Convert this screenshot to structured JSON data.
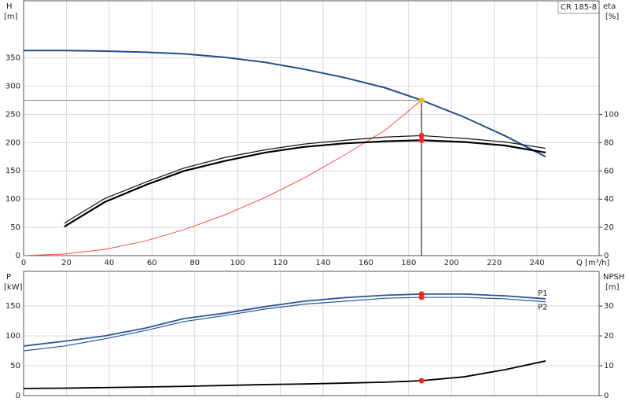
{
  "pump_label": "CR 185-8",
  "chart_data": [
    {
      "type": "line",
      "ylabel": "H",
      "yunit": "[m]",
      "y2label": "eta",
      "y2unit": "[%]",
      "xlabel": "Q [m³/h]",
      "x": [
        0,
        19,
        38,
        57,
        75,
        94,
        113,
        131,
        150,
        169,
        186,
        206,
        225,
        244
      ],
      "xlim": [
        0,
        269
      ],
      "xticks": [
        0,
        20,
        40,
        60,
        80,
        100,
        120,
        140,
        160,
        180,
        200,
        220,
        240
      ],
      "ylim": [
        0,
        451
      ],
      "yticks": [
        0,
        50,
        100,
        150,
        200,
        250,
        300,
        350
      ],
      "y2lim": [
        0,
        180.5
      ],
      "y2ticks": [
        0,
        20,
        40,
        60,
        80,
        100
      ],
      "grid": true,
      "series": [
        {
          "color": "#1f4e8c",
          "width": 2,
          "values": [
            363,
            363,
            362,
            360,
            357,
            351,
            342,
            330,
            315,
            297,
            275,
            245,
            212,
            175
          ]
        },
        {
          "color": "#ff4a3a",
          "width": 1,
          "values": [
            0,
            3,
            11,
            26,
            46,
            72,
            103,
            137,
            178,
            222,
            275,
            null,
            null,
            null
          ]
        },
        {
          "color": "#111111",
          "width": 1.2,
          "axis": "y2",
          "values": [
            null,
            23,
            40.5,
            52,
            62,
            69.5,
            75,
            79,
            81.7,
            84,
            85,
            83,
            80.5,
            76
          ]
        },
        {
          "color": "#000000",
          "width": 2.2,
          "axis": "y2",
          "values": [
            null,
            20.5,
            38,
            50,
            60,
            67,
            73,
            77,
            79.5,
            81,
            81.7,
            80.5,
            78,
            73
          ]
        }
      ],
      "markers": [
        {
          "x": 186,
          "y": 275,
          "color": "#f5b800"
        },
        {
          "x": 186,
          "y": 85,
          "axis": "y2",
          "color": "#ff2020"
        },
        {
          "x": 186,
          "y": 81.7,
          "axis": "y2",
          "color": "#ff2020"
        }
      ]
    },
    {
      "type": "line",
      "ylabel": "P",
      "yunit": "[kW]",
      "y2label": "NPSH",
      "y2unit": "[m]",
      "x": [
        0,
        19,
        38,
        57,
        75,
        94,
        113,
        131,
        150,
        169,
        186,
        206,
        225,
        244
      ],
      "xlim": [
        0,
        269
      ],
      "xticks": [
        0,
        20,
        40,
        60,
        80,
        100,
        120,
        140,
        160,
        180,
        200,
        220,
        240
      ],
      "ylim": [
        0,
        208
      ],
      "yticks": [
        0,
        50,
        100,
        150
      ],
      "y2lim": [
        0,
        41.6
      ],
      "y2ticks": [
        0,
        10,
        20,
        30
      ],
      "grid": true,
      "series": [
        {
          "name": "P1",
          "color": "#2b5797",
          "width": 1.8,
          "values": [
            83,
            91,
            100,
            113,
            129,
            138,
            149,
            158,
            164,
            168,
            170,
            170,
            167,
            162
          ]
        },
        {
          "name": "P2",
          "color": "#2b5797",
          "width": 1.2,
          "values": [
            75,
            83,
            95,
            109,
            124,
            134,
            145,
            153,
            158,
            163,
            164.5,
            164.5,
            162,
            157
          ]
        },
        {
          "color": "#000000",
          "width": 1.8,
          "axis": "y2",
          "values": [
            2.4,
            2.5,
            2.7,
            2.9,
            3.1,
            3.4,
            3.7,
            3.9,
            4.2,
            4.5,
            5,
            6.3,
            8.7,
            11.6
          ]
        }
      ],
      "markers": [
        {
          "x": 186,
          "y": 170,
          "color": "#ff2020"
        },
        {
          "x": 186,
          "y": 164.5,
          "color": "#ff2020"
        },
        {
          "x": 186,
          "y": 5,
          "axis": "y2",
          "color": "#ff2020"
        }
      ]
    }
  ]
}
